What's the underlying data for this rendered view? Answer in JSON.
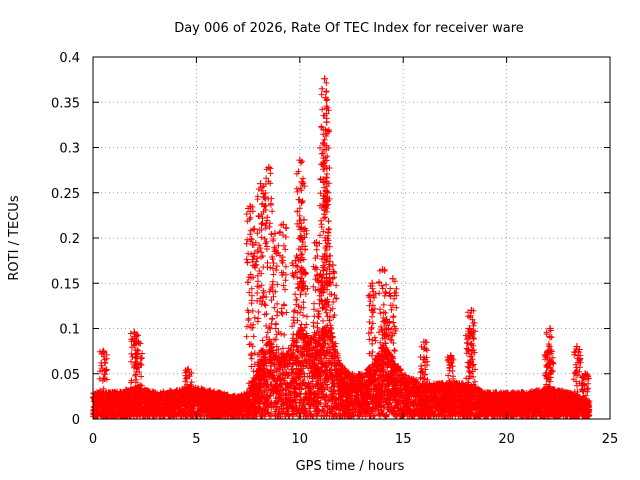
{
  "chart_data": {
    "type": "scatter",
    "title": "Day 006 of 2026, Rate Of TEC Index for receiver ware",
    "xlabel": "GPS time / hours",
    "ylabel": "ROTI / TECUs",
    "xlim": [
      0,
      25
    ],
    "ylim": [
      0,
      0.4
    ],
    "x_ticks": [
      0,
      5,
      10,
      15,
      20,
      25
    ],
    "y_ticks": [
      0,
      0.05,
      0.1,
      0.15,
      0.2,
      0.25,
      0.3,
      0.35,
      0.4
    ],
    "x_tick_labels": [
      "0",
      "5",
      "10",
      "15",
      "20",
      "25"
    ],
    "y_tick_labels": [
      "0",
      "0.05",
      "0.1",
      "0.15",
      "0.2",
      "0.25",
      "0.3",
      "0.35",
      "0.4"
    ],
    "grid": true,
    "marker": "plus",
    "marker_color": "#ff0000",
    "data_x_range": [
      0,
      24
    ],
    "baseline_envelope": {
      "x": [
        0,
        1,
        2,
        3,
        4,
        5,
        6,
        7,
        7.5,
        8,
        8.5,
        9,
        9.5,
        10,
        10.5,
        11,
        11.5,
        12,
        12.5,
        13,
        13.5,
        14,
        14.5,
        15,
        16,
        17,
        18,
        19,
        20,
        21,
        22,
        23,
        24
      ],
      "y": [
        0.03,
        0.03,
        0.035,
        0.03,
        0.032,
        0.035,
        0.03,
        0.025,
        0.03,
        0.06,
        0.09,
        0.07,
        0.08,
        0.1,
        0.09,
        0.1,
        0.1,
        0.06,
        0.05,
        0.05,
        0.06,
        0.08,
        0.07,
        0.05,
        0.04,
        0.04,
        0.04,
        0.03,
        0.03,
        0.03,
        0.035,
        0.03,
        0.02
      ]
    },
    "peaks": [
      {
        "x": 0.5,
        "y": 0.075
      },
      {
        "x": 2.0,
        "y": 0.096
      },
      {
        "x": 2.2,
        "y": 0.085
      },
      {
        "x": 4.6,
        "y": 0.055
      },
      {
        "x": 7.6,
        "y": 0.235
      },
      {
        "x": 7.8,
        "y": 0.21
      },
      {
        "x": 8.1,
        "y": 0.26
      },
      {
        "x": 8.3,
        "y": 0.245
      },
      {
        "x": 8.5,
        "y": 0.278
      },
      {
        "x": 8.8,
        "y": 0.205
      },
      {
        "x": 9.2,
        "y": 0.215
      },
      {
        "x": 9.8,
        "y": 0.175
      },
      {
        "x": 10.0,
        "y": 0.286
      },
      {
        "x": 10.1,
        "y": 0.262
      },
      {
        "x": 10.2,
        "y": 0.22
      },
      {
        "x": 10.8,
        "y": 0.195
      },
      {
        "x": 11.0,
        "y": 0.16
      },
      {
        "x": 11.2,
        "y": 0.376
      },
      {
        "x": 11.25,
        "y": 0.355
      },
      {
        "x": 11.3,
        "y": 0.328
      },
      {
        "x": 11.15,
        "y": 0.305
      },
      {
        "x": 11.35,
        "y": 0.25
      },
      {
        "x": 11.6,
        "y": 0.17
      },
      {
        "x": 13.5,
        "y": 0.15
      },
      {
        "x": 14.0,
        "y": 0.165
      },
      {
        "x": 14.5,
        "y": 0.155
      },
      {
        "x": 14.2,
        "y": 0.11
      },
      {
        "x": 16.0,
        "y": 0.085
      },
      {
        "x": 17.3,
        "y": 0.07
      },
      {
        "x": 18.3,
        "y": 0.12
      },
      {
        "x": 18.2,
        "y": 0.1
      },
      {
        "x": 22.1,
        "y": 0.1
      },
      {
        "x": 22.0,
        "y": 0.075
      },
      {
        "x": 23.4,
        "y": 0.08
      },
      {
        "x": 23.8,
        "y": 0.05
      }
    ]
  }
}
